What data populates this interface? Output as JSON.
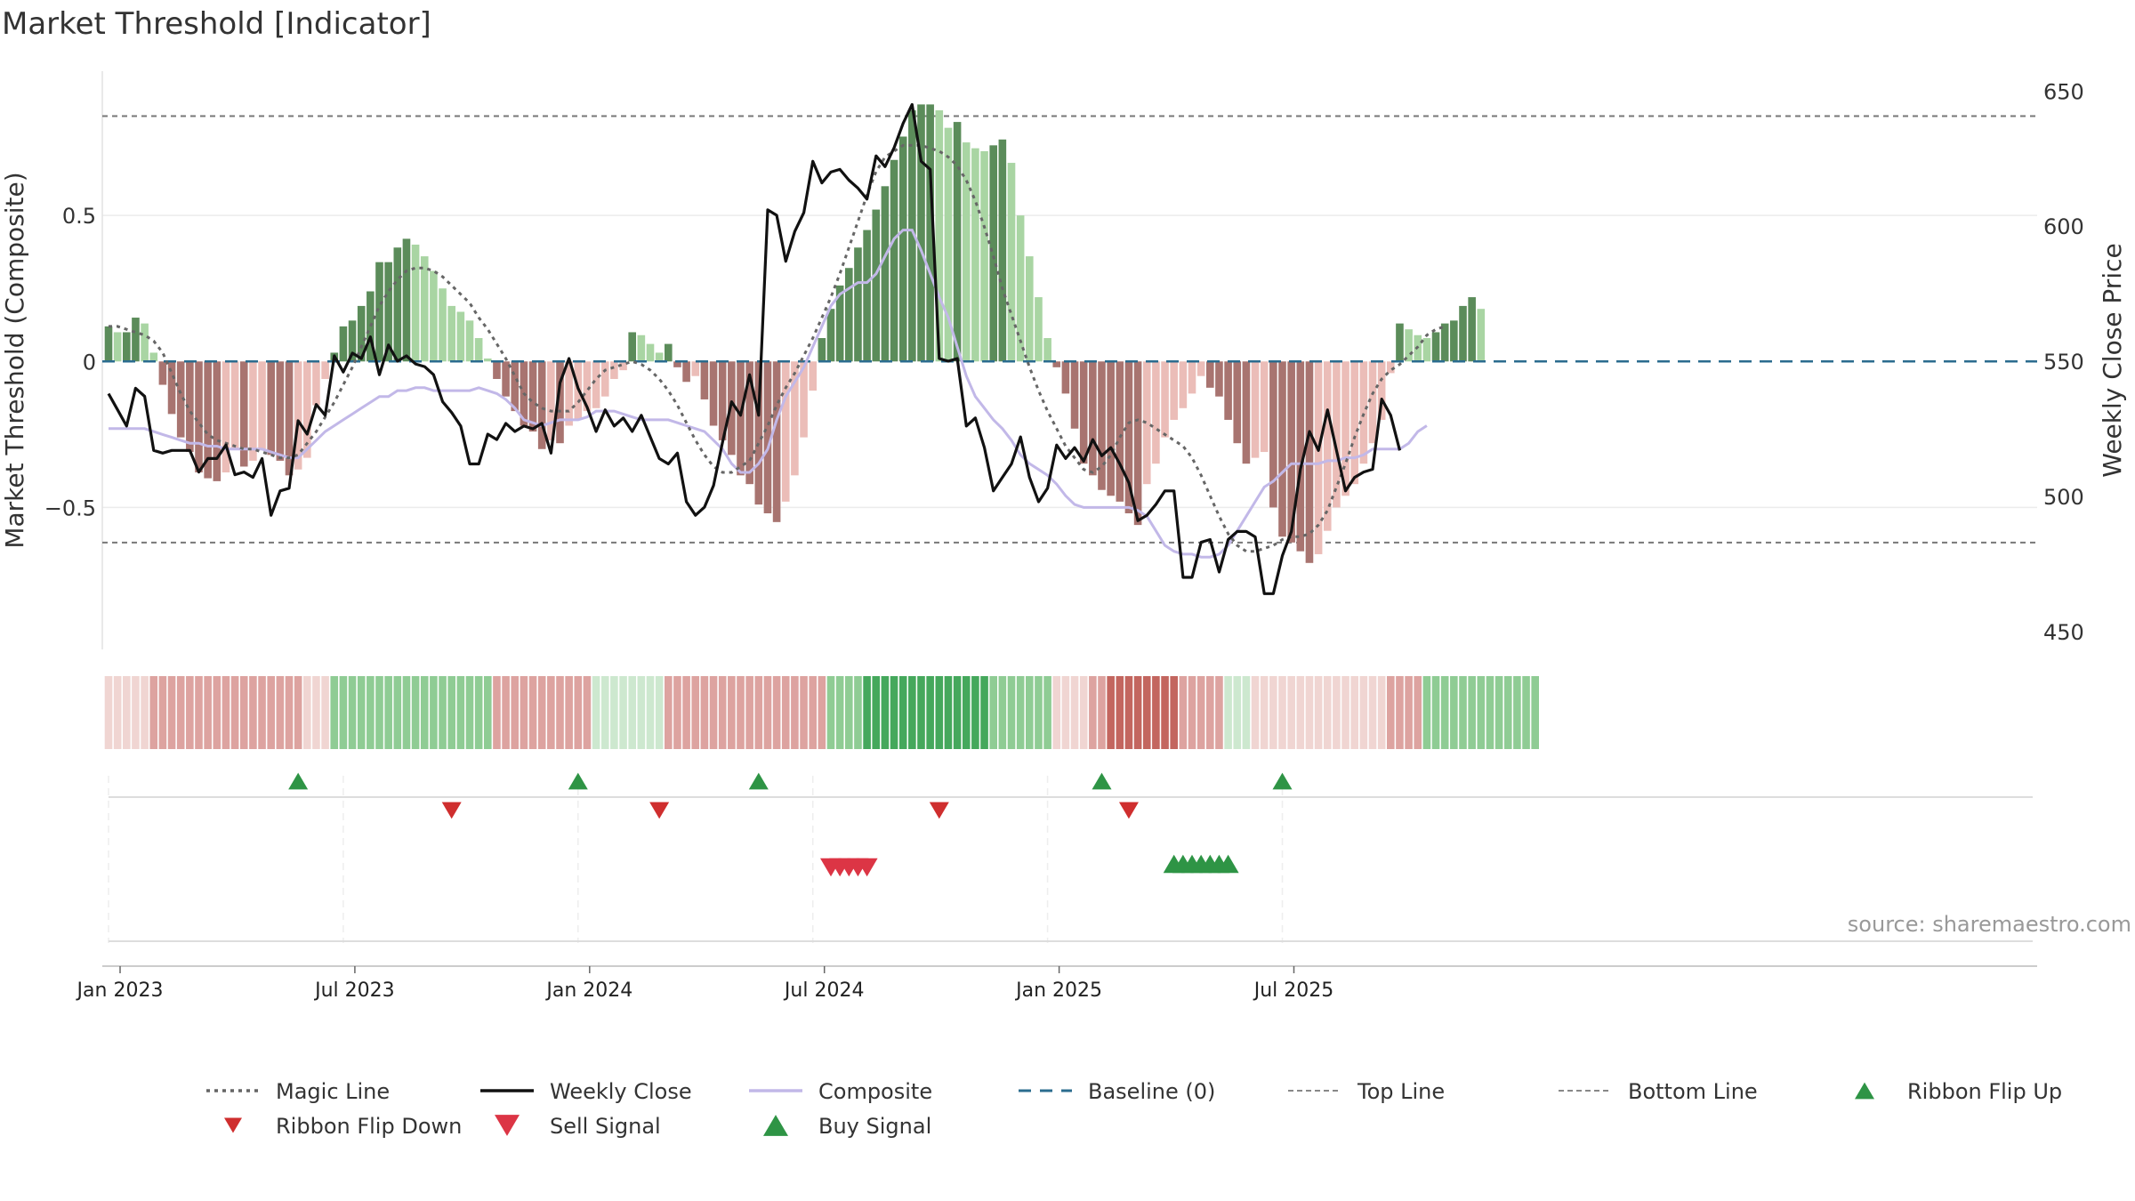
{
  "chart_data": {
    "type": "bar",
    "title": "Market Threshold [Indicator]",
    "ylabel_left": "Market Threshold (Composite)",
    "ylabel_right": "Weekly Close Price",
    "source": "source: sharemaestro.com",
    "ylim_left": [
      -0.98,
      1.0
    ],
    "ylim_right": [
      444,
      658
    ],
    "left_ticks": [
      {
        "value": 0.5,
        "label": "0.5"
      },
      {
        "value": 0,
        "label": "0"
      },
      {
        "value": -0.5,
        "label": "−0.5"
      }
    ],
    "right_ticks": [
      {
        "value": 650,
        "label": "650"
      },
      {
        "value": 600,
        "label": "600"
      },
      {
        "value": 550,
        "label": "550"
      },
      {
        "value": 500,
        "label": "500"
      },
      {
        "value": 450,
        "label": "450"
      }
    ],
    "x_ticks": [
      {
        "week": 0,
        "label": "Jan 2023"
      },
      {
        "week": 26,
        "label": "Jul 2023"
      },
      {
        "week": 52,
        "label": "Jan 2024"
      },
      {
        "week": 78,
        "label": "Jul 2024"
      },
      {
        "week": 104,
        "label": "Jan 2025"
      },
      {
        "week": 130,
        "label": "Jul 2025"
      }
    ],
    "top_line": 0.84,
    "bottom_line": -0.62,
    "baseline": 0,
    "colors": {
      "pos_strong": "#5b8c5a",
      "pos_weak": "#a9d5a3",
      "neg_strong": "#a87470",
      "neg_weak": "#ebbdb8",
      "extreme": "#fcc200",
      "close": "#111111",
      "composite": "#c2b8e8",
      "magic": "#666666",
      "baseline": "#2b6c8f",
      "threshold": "#777777",
      "flip_up": "#2e9445",
      "flip_down": "#cf2e2e",
      "sell": "#dc3545",
      "buy": "#2e9445"
    },
    "composite": [
      0.12,
      0.1,
      0.1,
      0.15,
      0.13,
      0.03,
      -0.08,
      -0.18,
      -0.26,
      -0.31,
      -0.38,
      -0.4,
      -0.41,
      -0.38,
      -0.3,
      -0.36,
      -0.34,
      -0.3,
      -0.32,
      -0.34,
      -0.39,
      -0.37,
      -0.33,
      -0.15,
      -0.06,
      0.03,
      0.12,
      0.14,
      0.19,
      0.24,
      0.34,
      0.34,
      0.39,
      0.42,
      0.4,
      0.36,
      0.31,
      0.25,
      0.19,
      0.17,
      0.14,
      0.08,
      0.01,
      -0.06,
      -0.12,
      -0.17,
      -0.22,
      -0.24,
      -0.3,
      -0.27,
      -0.28,
      -0.22,
      -0.2,
      -0.17,
      -0.16,
      -0.12,
      -0.06,
      -0.03,
      0.1,
      0.09,
      0.06,
      0.03,
      0.06,
      -0.02,
      -0.07,
      -0.05,
      -0.13,
      -0.22,
      -0.27,
      -0.32,
      -0.39,
      -0.42,
      -0.49,
      -0.52,
      -0.55,
      -0.48,
      -0.39,
      -0.26,
      -0.1,
      0.08,
      0.18,
      0.26,
      0.32,
      0.39,
      0.45,
      0.52,
      0.6,
      0.69,
      0.77,
      0.86,
      0.88,
      0.88,
      0.86,
      0.8,
      0.82,
      0.75,
      0.73,
      0.72,
      0.74,
      0.76,
      0.68,
      0.5,
      0.36,
      0.22,
      0.08,
      -0.02,
      -0.11,
      -0.23,
      -0.35,
      -0.39,
      -0.44,
      -0.46,
      -0.48,
      -0.52,
      -0.56,
      -0.42,
      -0.35,
      -0.26,
      -0.2,
      -0.16,
      -0.11,
      -0.05,
      -0.09,
      -0.12,
      -0.2,
      -0.28,
      -0.35,
      -0.33,
      -0.31,
      -0.5,
      -0.6,
      -0.62,
      -0.65,
      -0.69,
      -0.66,
      -0.58,
      -0.5,
      -0.46,
      -0.42,
      -0.35,
      -0.28,
      -0.2,
      -0.04,
      0.13,
      0.11,
      0.09,
      0.08,
      0.1,
      0.13,
      0.14,
      0.19,
      0.22,
      0.18
    ],
    "weekly_close": [
      538,
      532,
      526,
      540,
      537,
      517,
      516,
      517,
      517,
      517,
      509,
      514,
      514,
      519,
      508,
      509,
      507,
      514,
      493,
      502,
      503,
      528,
      523,
      534,
      530,
      552,
      546,
      553,
      551,
      559,
      545,
      556,
      550,
      552,
      549,
      548,
      545,
      535,
      531,
      526,
      512,
      512,
      523,
      521,
      527,
      524,
      526,
      525,
      527,
      516,
      542,
      551,
      540,
      533,
      524,
      532,
      526,
      529,
      524,
      530,
      522,
      514,
      512,
      516,
      498,
      493,
      496,
      504,
      520,
      535,
      530,
      545,
      530,
      606,
      604,
      587,
      598,
      605,
      624,
      616,
      620,
      621,
      617,
      614,
      610,
      626,
      622,
      629,
      638,
      645,
      624,
      621,
      551,
      550,
      551,
      526,
      529,
      518,
      502,
      507,
      512,
      522,
      507,
      498,
      503,
      519,
      514,
      518,
      513,
      521,
      515,
      518,
      512,
      505,
      491,
      493,
      497,
      502,
      502,
      470,
      470,
      483,
      484,
      472,
      484,
      487,
      487,
      485,
      464,
      464,
      478,
      487,
      510,
      524,
      517,
      532,
      517,
      502,
      507,
      509,
      510,
      536,
      530,
      517
    ],
    "composite_line": [
      -0.23,
      -0.23,
      -0.23,
      -0.23,
      -0.23,
      -0.24,
      -0.25,
      -0.26,
      -0.27,
      -0.28,
      -0.28,
      -0.29,
      -0.29,
      -0.3,
      -0.3,
      -0.3,
      -0.3,
      -0.3,
      -0.31,
      -0.32,
      -0.33,
      -0.33,
      -0.3,
      -0.27,
      -0.24,
      -0.22,
      -0.2,
      -0.18,
      -0.16,
      -0.14,
      -0.12,
      -0.12,
      -0.1,
      -0.1,
      -0.09,
      -0.09,
      -0.1,
      -0.1,
      -0.1,
      -0.1,
      -0.1,
      -0.09,
      -0.1,
      -0.11,
      -0.13,
      -0.16,
      -0.2,
      -0.21,
      -0.22,
      -0.21,
      -0.2,
      -0.2,
      -0.2,
      -0.19,
      -0.17,
      -0.17,
      -0.17,
      -0.18,
      -0.19,
      -0.2,
      -0.2,
      -0.2,
      -0.2,
      -0.21,
      -0.22,
      -0.23,
      -0.24,
      -0.27,
      -0.3,
      -0.35,
      -0.38,
      -0.38,
      -0.35,
      -0.3,
      -0.2,
      -0.12,
      -0.07,
      -0.02,
      0.05,
      0.12,
      0.19,
      0.23,
      0.25,
      0.27,
      0.27,
      0.3,
      0.36,
      0.42,
      0.45,
      0.45,
      0.38,
      0.3,
      0.22,
      0.15,
      0.05,
      -0.05,
      -0.12,
      -0.16,
      -0.2,
      -0.23,
      -0.27,
      -0.32,
      -0.35,
      -0.37,
      -0.39,
      -0.42,
      -0.46,
      -0.49,
      -0.5,
      -0.5,
      -0.5,
      -0.5,
      -0.5,
      -0.5,
      -0.51,
      -0.53,
      -0.58,
      -0.63,
      -0.65,
      -0.66,
      -0.66,
      -0.67,
      -0.67,
      -0.66,
      -0.63,
      -0.58,
      -0.53,
      -0.48,
      -0.43,
      -0.41,
      -0.38,
      -0.35,
      -0.35,
      -0.35,
      -0.35,
      -0.34,
      -0.34,
      -0.33,
      -0.33,
      -0.32,
      -0.3,
      -0.3,
      -0.3,
      -0.3,
      -0.28,
      -0.24,
      -0.22
    ],
    "magic_line": [
      0.12,
      0.12,
      0.11,
      0.1,
      0.09,
      0.07,
      0.03,
      -0.04,
      -0.11,
      -0.17,
      -0.21,
      -0.25,
      -0.27,
      -0.28,
      -0.29,
      -0.3,
      -0.3,
      -0.31,
      -0.32,
      -0.33,
      -0.33,
      -0.32,
      -0.28,
      -0.24,
      -0.19,
      -0.14,
      -0.08,
      -0.02,
      0.05,
      0.12,
      0.19,
      0.24,
      0.28,
      0.31,
      0.32,
      0.32,
      0.31,
      0.29,
      0.26,
      0.23,
      0.2,
      0.15,
      0.11,
      0.06,
      0.01,
      -0.05,
      -0.11,
      -0.14,
      -0.16,
      -0.17,
      -0.17,
      -0.17,
      -0.14,
      -0.1,
      -0.06,
      -0.03,
      -0.02,
      -0.01,
      0.0,
      -0.01,
      -0.03,
      -0.06,
      -0.1,
      -0.15,
      -0.21,
      -0.27,
      -0.32,
      -0.36,
      -0.38,
      -0.38,
      -0.36,
      -0.34,
      -0.28,
      -0.22,
      -0.15,
      -0.09,
      -0.04,
      0.02,
      0.08,
      0.15,
      0.22,
      0.3,
      0.39,
      0.48,
      0.57,
      0.65,
      0.7,
      0.72,
      0.74,
      0.74,
      0.74,
      0.73,
      0.72,
      0.7,
      0.67,
      0.62,
      0.55,
      0.46,
      0.36,
      0.25,
      0.16,
      0.07,
      -0.02,
      -0.1,
      -0.17,
      -0.23,
      -0.29,
      -0.33,
      -0.37,
      -0.38,
      -0.36,
      -0.32,
      -0.26,
      -0.21,
      -0.2,
      -0.21,
      -0.23,
      -0.25,
      -0.27,
      -0.29,
      -0.33,
      -0.39,
      -0.46,
      -0.53,
      -0.59,
      -0.63,
      -0.65,
      -0.65,
      -0.64,
      -0.63,
      -0.61,
      -0.6,
      -0.6,
      -0.59,
      -0.56,
      -0.51,
      -0.43,
      -0.35,
      -0.26,
      -0.18,
      -0.11,
      -0.06,
      -0.03,
      -0.01,
      0.02,
      0.05,
      0.09,
      0.11,
      0.12
    ],
    "ribbon": [
      -1,
      -1,
      -1,
      -1,
      -1,
      -2,
      -2,
      -2,
      -2,
      -2,
      -2,
      -2,
      -2,
      -2,
      -2,
      -2,
      -2,
      -2,
      -2,
      -2,
      -2,
      -2,
      -1,
      -1,
      -1,
      2,
      2,
      2,
      2,
      2,
      2,
      2,
      2,
      2,
      2,
      2,
      2,
      2,
      2,
      2,
      2,
      2,
      2,
      -2,
      -2,
      -2,
      -2,
      -2,
      -2,
      -2,
      -2,
      -2,
      -2,
      -2,
      1,
      1,
      1,
      1,
      1,
      1,
      1,
      1,
      -2,
      -2,
      -2,
      -2,
      -2,
      -2,
      -2,
      -2,
      -2,
      -2,
      -2,
      -2,
      -2,
      -2,
      -2,
      -2,
      -2,
      -2,
      2,
      2,
      2,
      2,
      3,
      3,
      3,
      3,
      3,
      3,
      3,
      3,
      3,
      3,
      3,
      3,
      3,
      3,
      2,
      2,
      2,
      2,
      2,
      2,
      2,
      -1,
      -1,
      -1,
      -1,
      -2,
      -2,
      -3,
      -3,
      -3,
      -3,
      -3,
      -3,
      -3,
      -3,
      -2,
      -2,
      -2,
      -2,
      -2,
      1,
      1,
      1,
      -1,
      -1,
      -1,
      -1,
      -1,
      -1,
      -1,
      -1,
      -1,
      -1,
      -1,
      -1,
      -1,
      -1,
      -1,
      -2,
      -2,
      -2,
      -2,
      2,
      2,
      2,
      2,
      2,
      2,
      2,
      2,
      2,
      2,
      2,
      2,
      2
    ],
    "ribbon_flip_up": [
      21,
      52,
      72,
      110,
      130
    ],
    "ribbon_flip_down": [
      38,
      61,
      92,
      113
    ],
    "sell_signals": [
      80,
      81,
      82,
      83,
      84
    ],
    "buy_signals": [
      118,
      119,
      120,
      121,
      122,
      123,
      124
    ],
    "legend": [
      {
        "label": "Magic Line",
        "kind": "dotted"
      },
      {
        "label": "Weekly Close",
        "kind": "solid"
      },
      {
        "label": "Composite",
        "kind": "lavender"
      },
      {
        "label": "Baseline (0)",
        "kind": "dashed"
      },
      {
        "label": "Top Line",
        "kind": "thin-dashed"
      },
      {
        "label": "Bottom Line",
        "kind": "thin-dashed"
      },
      {
        "label": "Ribbon Flip Up",
        "kind": "tri-up-flip"
      },
      {
        "label": "Ribbon Flip Down",
        "kind": "tri-down-flip"
      },
      {
        "label": "Sell Signal",
        "kind": "tri-down-sell"
      },
      {
        "label": "Buy Signal",
        "kind": "tri-up-buy"
      }
    ]
  }
}
